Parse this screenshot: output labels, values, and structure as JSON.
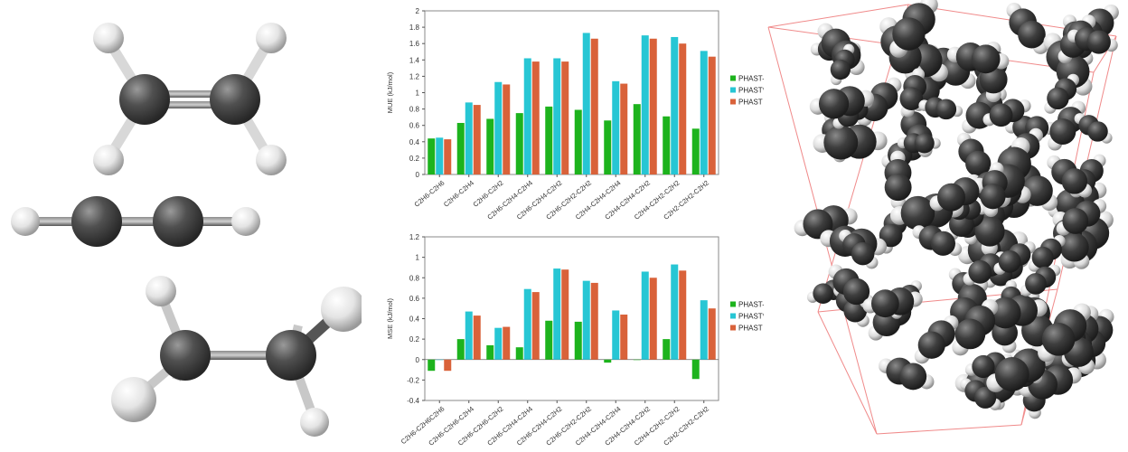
{
  "colors": {
    "phast_tt": "#1db31d",
    "phast_star": "#27c6d4",
    "phast": "#d9623a",
    "atom_carbon": "#3c3c3c",
    "atom_hydrogen": "#e6e6e6",
    "box_edge": "#f08a8a"
  },
  "molecules": [
    "ethylene-model",
    "acetylene-model",
    "ethane-model"
  ],
  "simulation_box": {
    "label": "molecular-simulation-box"
  },
  "chart_data": [
    {
      "type": "bar",
      "ylabel": "MUE (kJ/mol)",
      "ylim": [
        0,
        2
      ],
      "yticks": [
        "0",
        "0.2",
        "0.4",
        "0.6",
        "0.8",
        "1",
        "1.2",
        "1.4",
        "1.6",
        "1.8",
        "2"
      ],
      "grid": false,
      "legend": "right",
      "categories": [
        "C2H6-C2H6",
        "C2H6-C2H4",
        "C2H6-C2H2",
        "C2H6-C2H4-C2H4",
        "C2H6-C2H4-C2H2",
        "C2H6-C2H2-C2H2",
        "C2H4-C2H4-C2H4",
        "C2H4-C2H4-C2H2",
        "C2H4-C2H2-C2H2",
        "C2H2-C2H2-C2H2"
      ],
      "series": [
        {
          "name": "PHAST-TT*",
          "values": [
            0.44,
            0.63,
            0.68,
            0.75,
            0.83,
            0.79,
            0.66,
            0.86,
            0.71,
            0.56
          ]
        },
        {
          "name": "PHAST*",
          "values": [
            0.45,
            0.88,
            1.13,
            1.42,
            1.42,
            1.73,
            1.14,
            1.7,
            1.68,
            1.51
          ]
        },
        {
          "name": "PHAST",
          "values": [
            0.43,
            0.85,
            1.1,
            1.38,
            1.38,
            1.66,
            1.11,
            1.66,
            1.6,
            1.44
          ]
        }
      ]
    },
    {
      "type": "bar",
      "ylabel": "MSE (kJ/mol)",
      "ylim": [
        -0.4,
        1.2
      ],
      "yticks": [
        "-0.4",
        "-0.2",
        "0",
        "0.2",
        "0.4",
        "0.6",
        "0.8",
        "1",
        "1.2"
      ],
      "grid": false,
      "legend": "right",
      "categories": [
        "C2H6-C2H6C2H6",
        "C2H6-C2H6-C2H4",
        "C2H6-C2H6-C2H2",
        "C2H6-C2H4-C2H4",
        "C2H6-C2H4-C2H2",
        "C2H6-C2H2-C2H2",
        "C2H4-C2H4-C2H4",
        "C2H4-C2H4-C2H2",
        "C2H4-C2H2-C2H2",
        "C2H2-C2H2-C2H2"
      ],
      "series": [
        {
          "name": "PHAST-TT*",
          "values": [
            -0.11,
            0.2,
            0.14,
            0.12,
            0.38,
            0.37,
            -0.03,
            0.0,
            0.2,
            -0.19
          ]
        },
        {
          "name": "PHAST*",
          "values": [
            0.0,
            0.47,
            0.31,
            0.69,
            0.89,
            0.77,
            0.48,
            0.86,
            0.93,
            0.58
          ]
        },
        {
          "name": "PHAST",
          "values": [
            -0.11,
            0.43,
            0.32,
            0.66,
            0.88,
            0.75,
            0.44,
            0.8,
            0.87,
            0.5
          ]
        }
      ]
    }
  ]
}
